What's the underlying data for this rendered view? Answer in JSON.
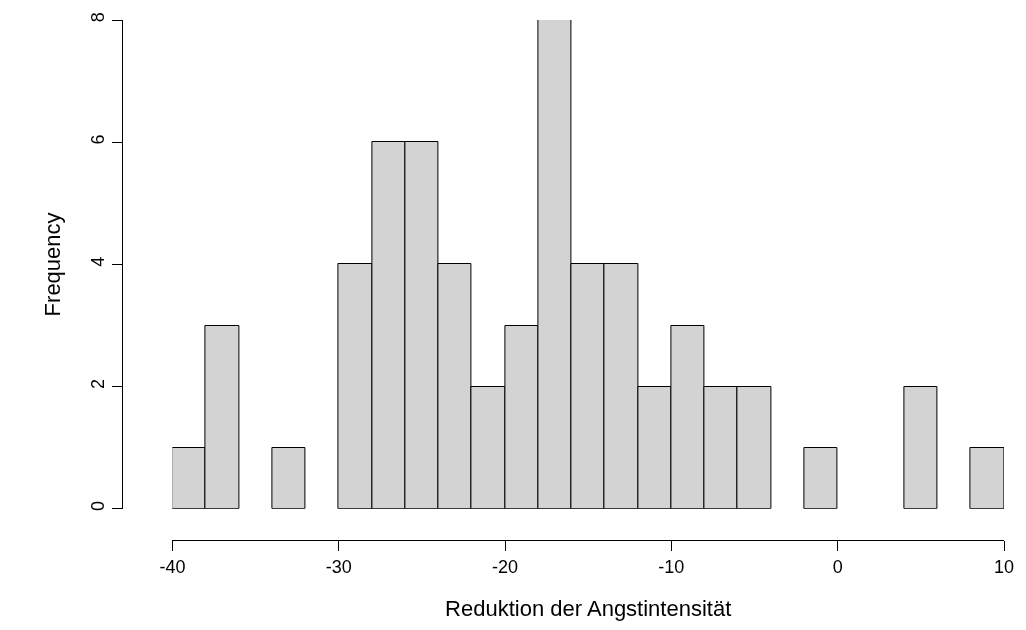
{
  "chart_data": {
    "type": "histogram",
    "xlabel": "Reduktion der Angstintensität",
    "ylabel": "Frequency",
    "bins": [
      -40,
      -38,
      -36,
      -34,
      -32,
      -30,
      -28,
      -26,
      -24,
      -22,
      -20,
      -18,
      -16,
      -14,
      -12,
      -10,
      -8,
      -6,
      -4,
      -2,
      0,
      2,
      4,
      6,
      8,
      10
    ],
    "values": [
      1,
      3,
      0,
      1,
      0,
      4,
      6,
      6,
      4,
      2,
      3,
      8,
      4,
      4,
      2,
      3,
      2,
      2,
      0,
      1,
      0,
      0,
      2,
      0,
      1
    ],
    "color": "#d3d3d3",
    "xlim": [
      -40,
      10
    ],
    "xticks": [
      -40,
      -30,
      -20,
      -10,
      0,
      10
    ],
    "ylim": [
      0,
      8
    ],
    "yticks": [
      0,
      2,
      4,
      6,
      8
    ]
  }
}
